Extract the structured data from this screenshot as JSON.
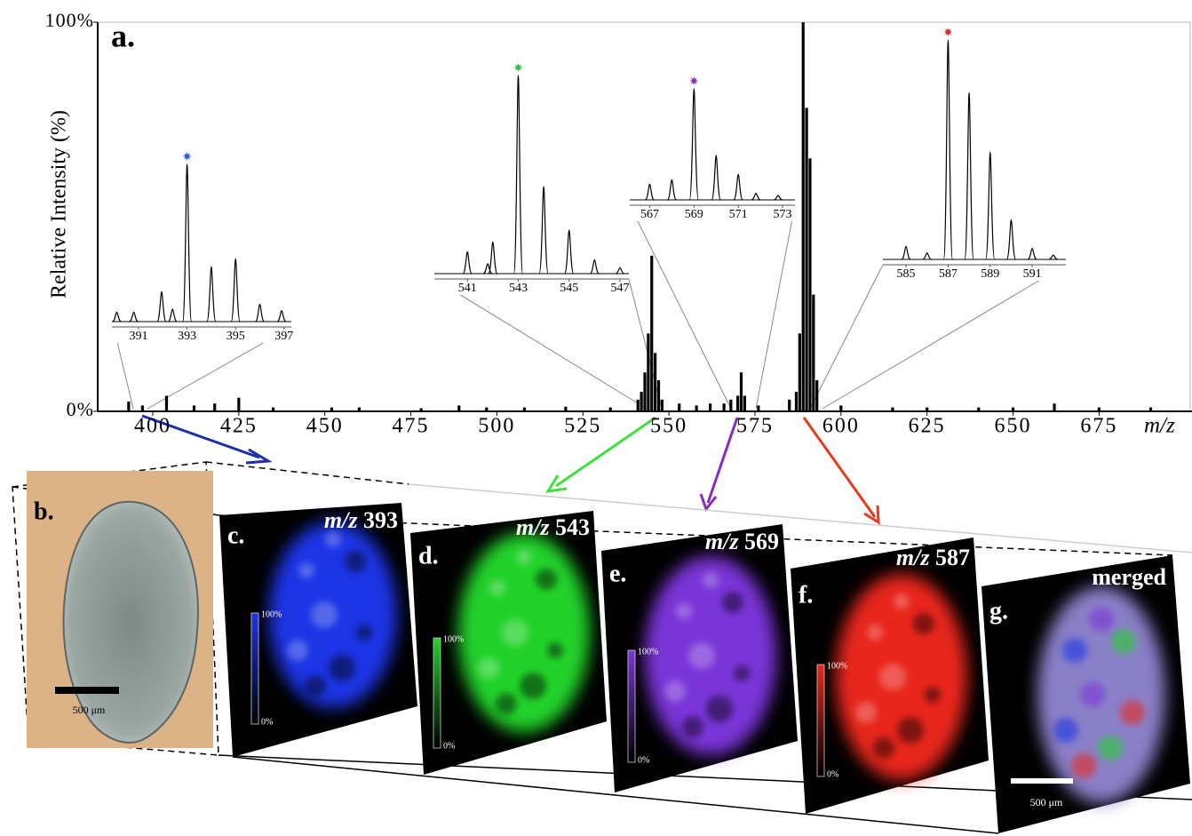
{
  "spectrum": {
    "panel_label": "a.",
    "ylabel": "Relative Intensity (%)",
    "xlabel": "m/z",
    "xlim": [
      384,
      702
    ],
    "ylim": [
      0,
      100
    ],
    "xticks": [
      400,
      425,
      450,
      475,
      500,
      525,
      550,
      575,
      600,
      625,
      650,
      675
    ],
    "yticks": [
      {
        "value": 0,
        "label": "0%"
      },
      {
        "value": 100,
        "label": "100%"
      }
    ],
    "color": "#000000",
    "peaks": {
      "x": [
        393,
        397,
        404,
        412,
        418,
        425,
        435,
        452,
        460,
        478,
        489,
        497,
        508,
        520,
        533,
        541,
        542,
        543,
        544,
        545,
        546,
        547,
        548,
        553,
        558,
        562,
        566,
        568,
        570,
        571,
        572,
        576,
        585,
        587,
        588,
        589,
        590,
        591,
        592,
        593,
        600,
        615,
        625,
        640,
        650,
        662,
        675,
        690
      ],
      "values": [
        2.5,
        1.5,
        4,
        1.5,
        2,
        3.5,
        1,
        1,
        1,
        0.8,
        1.5,
        1,
        1,
        1.2,
        1,
        3,
        5,
        10,
        20,
        40,
        15,
        8,
        3,
        2,
        1.5,
        2,
        2,
        3,
        4,
        10,
        4,
        1.5,
        3,
        5,
        20,
        100,
        78,
        65,
        30,
        8,
        1.5,
        1,
        1,
        1,
        1,
        2,
        1,
        1
      ]
    },
    "insets": [
      {
        "xlim": [
          389.9,
          397.3
        ],
        "ylim": [
          0,
          100
        ],
        "xticks": [
          391,
          393,
          395,
          397
        ],
        "marker_color": "#2a55e6",
        "peaks": {
          "x": [
            390.1,
            390.8,
            391.95,
            392.4,
            393,
            394,
            395,
            396,
            396.9
          ],
          "values": [
            6,
            6,
            19,
            8,
            100,
            35,
            40,
            11,
            7
          ]
        }
      },
      {
        "xlim": [
          539.7,
          547.35
        ],
        "ylim": [
          0,
          100
        ],
        "xticks": [
          541,
          543,
          545,
          547
        ],
        "marker_color": "#22c23a",
        "peaks": {
          "x": [
            541,
            541.8,
            542,
            543,
            544,
            545,
            546,
            547
          ],
          "values": [
            11,
            5,
            16,
            100,
            44,
            22,
            7,
            3
          ]
        }
      },
      {
        "xlim": [
          566.1,
          573.56
        ],
        "ylim": [
          0,
          100
        ],
        "xticks": [
          567,
          569,
          571,
          573
        ],
        "marker_color": "#8a2bc0",
        "peaks": {
          "x": [
            567,
            568,
            569,
            570,
            571,
            571.8,
            572.8
          ],
          "values": [
            14,
            18,
            100,
            40,
            23,
            6,
            4
          ]
        }
      },
      {
        "xlim": [
          583.9,
          592.6
        ],
        "ylim": [
          0,
          100
        ],
        "xticks": [
          585,
          587,
          589,
          591
        ],
        "marker_color": "#e52222",
        "peaks": {
          "x": [
            585,
            586,
            587,
            588,
            589,
            590,
            591,
            592
          ],
          "values": [
            6,
            3,
            100,
            76,
            49,
            18,
            5,
            2
          ]
        }
      }
    ]
  },
  "images": [
    {
      "label": "b.",
      "scale_bar": "500 μm"
    },
    {
      "label": "c.",
      "mz_unit": "m/z",
      "mz": 393,
      "color": "#1e34e6",
      "colorbar": [
        "100%",
        "0%"
      ]
    },
    {
      "label": "d.",
      "mz_unit": "m/z",
      "mz": 543,
      "color": "#22d22a",
      "colorbar": [
        "100%",
        "0%"
      ]
    },
    {
      "label": "e.",
      "mz_unit": "m/z",
      "mz": 569,
      "color": "#7a34d8",
      "colorbar": [
        "100%",
        "0%"
      ]
    },
    {
      "label": "f.",
      "mz_unit": "m/z",
      "mz": 587,
      "color": "#e8281c",
      "colorbar": [
        "100%",
        "0%"
      ]
    },
    {
      "label": "g.",
      "title": "merged",
      "scale_bar": "500 μm"
    }
  ]
}
